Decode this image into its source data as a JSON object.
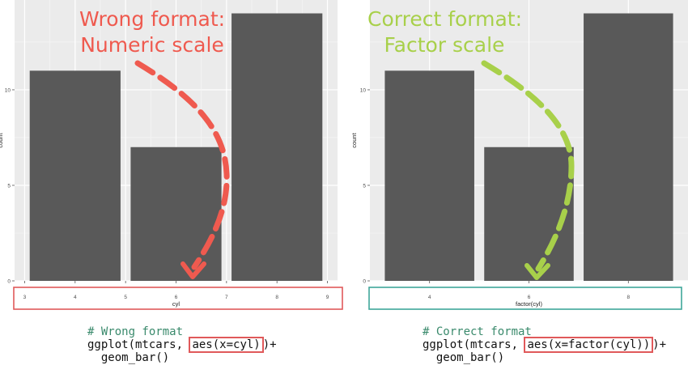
{
  "chart_data": [
    {
      "type": "bar",
      "x": [
        4,
        6,
        8
      ],
      "values": [
        11,
        7,
        14
      ],
      "xlabel": "cyl",
      "ylabel": "count",
      "xticks": [
        "3",
        "4",
        "5",
        "6",
        "7",
        "8",
        "9"
      ],
      "yticks": [
        "0",
        "5",
        "10"
      ],
      "xlim": [
        2.8,
        9.2
      ],
      "ylim": [
        0,
        14.7
      ],
      "grid": true,
      "legend": "none"
    },
    {
      "type": "bar",
      "categories": [
        "4",
        "6",
        "8"
      ],
      "values": [
        11,
        7,
        14
      ],
      "xlabel": "factor(cyl)",
      "ylabel": "count",
      "yticks": [
        "0",
        "5",
        "10"
      ],
      "ylim": [
        0,
        14.7
      ],
      "grid": true,
      "legend": "none"
    }
  ],
  "annotations": {
    "left": {
      "line1": "Wrong format:",
      "line2": "Numeric scale",
      "color": "#ef5a4f"
    },
    "right": {
      "line1": "Correct format:",
      "line2": "Factor scale",
      "color": "#a8d04a"
    }
  },
  "code_left": {
    "comment": "# Wrong format",
    "prefix": "ggplot(mtcars, ",
    "highlight": "aes(x=cyl)",
    "suffix": ")+",
    "line3": "  geom_bar()"
  },
  "code_right": {
    "comment": "# Correct format",
    "prefix": "ggplot(mtcars, ",
    "highlight": "aes(x=factor(cyl))",
    "suffix": ")+",
    "line3": "  geom_bar()"
  },
  "colors": {
    "panel_bg": "#ebebeb",
    "grid_major": "#ffffff",
    "grid_minor": "#f4f4f4",
    "bar_fill": "#595959",
    "box_left": "#e0595a",
    "box_right": "#3fa69a"
  }
}
